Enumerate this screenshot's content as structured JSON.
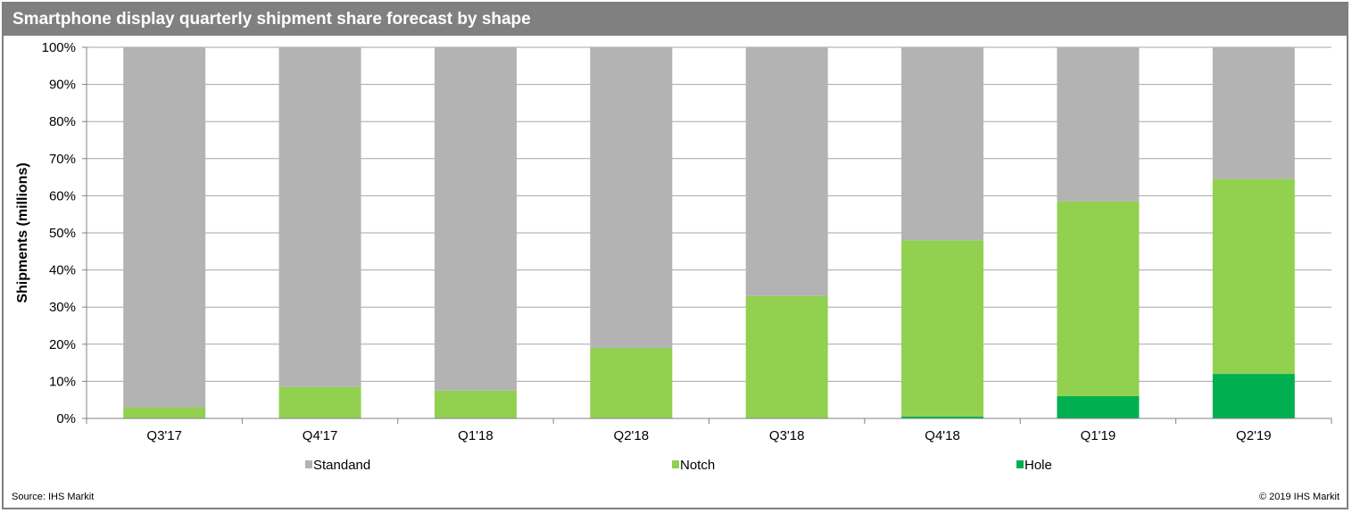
{
  "header": {
    "title": "Smartphone display quarterly shipment share forecast by shape"
  },
  "footer": {
    "source": "Source: IHS Markit",
    "copyright": "© 2019 IHS Markit"
  },
  "colors": {
    "Standand": "#b3b3b3",
    "Notch": "#92d050",
    "Hole": "#00b050",
    "grid": "#a6a6a6",
    "axis": "#808080"
  },
  "chart_data": {
    "type": "bar",
    "stacked": true,
    "title": "Smartphone display quarterly shipment share forecast by shape",
    "ylabel": "Shipments (millions)",
    "xlabel": "",
    "categories": [
      "Q3'17",
      "Q4'17",
      "Q1'18",
      "Q2'18",
      "Q3'18",
      "Q4'18",
      "Q1'19",
      "Q2'19"
    ],
    "ylim": [
      0,
      100
    ],
    "yticks": [
      "0%",
      "10%",
      "20%",
      "30%",
      "40%",
      "50%",
      "60%",
      "70%",
      "80%",
      "90%",
      "100%"
    ],
    "grid": true,
    "legend_position": "bottom",
    "series": [
      {
        "name": "Hole",
        "values": [
          0,
          0,
          0,
          0,
          0,
          0.5,
          6,
          12
        ]
      },
      {
        "name": "Notch",
        "values": [
          3,
          8.5,
          7.5,
          19,
          33,
          47.5,
          52.5,
          52.5
        ]
      },
      {
        "name": "Standand",
        "values": [
          97,
          91.5,
          92.5,
          81,
          67,
          52,
          41.5,
          35.5
        ]
      }
    ],
    "legend": [
      "Standand",
      "Notch",
      "Hole"
    ]
  }
}
